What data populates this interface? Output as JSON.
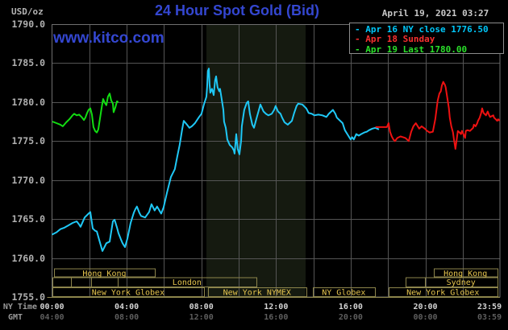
{
  "header": {
    "units_label": "USD/oz",
    "title": "24 Hour Spot Gold (Bid)",
    "datetime": "April 19, 2021 03:27",
    "watermark": "www.kitco.com"
  },
  "legend": {
    "items": [
      {
        "label": "Apr 16 NY close 1776.50",
        "color": "#00c6f8"
      },
      {
        "label": "Apr 18 Sunday",
        "color": "#f83030"
      },
      {
        "label": "Apr 19 Last 1780.00",
        "color": "#2ae02a"
      }
    ]
  },
  "axes": {
    "ny_row_label": "NY Time",
    "gmt_row_label": "GMT",
    "y_tick_labels": [
      "1790.0",
      "1785.0",
      "1780.0",
      "1775.0",
      "1770.0",
      "1765.0",
      "1760.0",
      "1755.0"
    ],
    "x_ticks": [
      {
        "hour": 0,
        "ny": "00:00",
        "gmt": "04:00"
      },
      {
        "hour": 4,
        "ny": "04:00",
        "gmt": "08:00"
      },
      {
        "hour": 8,
        "ny": "08:00",
        "gmt": "12:00"
      },
      {
        "hour": 12,
        "ny": "12:00",
        "gmt": "16:00"
      },
      {
        "hour": 16,
        "ny": "16:00",
        "gmt": "20:00"
      },
      {
        "hour": 20,
        "ny": "20:00",
        "gmt": "00:00"
      },
      {
        "hour": 23.983,
        "ny": "23:59",
        "gmt": "03:59",
        "align": "right"
      }
    ]
  },
  "sessions": {
    "rows": [
      {
        "row": 1,
        "boxes": [
          {
            "label": "Hong Kong",
            "start": 0.11,
            "end": 5.5
          },
          {
            "label": "Hong Kong",
            "start": 20.44,
            "end": 23.85
          }
        ]
      },
      {
        "row": 2,
        "boxes": [
          {
            "label": "",
            "start": 0.0,
            "end": 1.01
          },
          {
            "label": "",
            "start": 1.01,
            "end": 2.09
          },
          {
            "label": "",
            "start": 2.09,
            "end": 3.52
          },
          {
            "label": "London",
            "start": 3.52,
            "end": 10.94
          },
          {
            "label": "",
            "start": 18.93,
            "end": 19.97
          },
          {
            "label": "Sydney",
            "start": 19.97,
            "end": 23.85
          }
        ]
      },
      {
        "row": 3,
        "boxes": [
          {
            "label": "New York Globex",
            "start": 0.02,
            "end": 8.14
          },
          {
            "label": "New York NYMEX",
            "start": 8.35,
            "end": 13.62
          },
          {
            "label": "NY Globex",
            "start": 13.97,
            "end": 17.29
          },
          {
            "label": "New York Globex",
            "start": 18.03,
            "end": 23.85
          }
        ]
      }
    ]
  },
  "colors": {
    "background": "#000000",
    "grid": "#555555",
    "plot_border": "#6f6f6f",
    "session_border": "#8d854c",
    "session_text": "#e5c44e",
    "band_fill": "#151a10",
    "title_blue": "#3447d1"
  },
  "chart_data": {
    "type": "line",
    "title": "24 Hour Spot Gold (Bid)",
    "xlabel": "NY Time (hours 0-24)",
    "ylabel": "USD/oz",
    "ylim": [
      1755,
      1790
    ],
    "y_tick_step": 5,
    "grid": true,
    "legend_position": "top-right",
    "nymex_band": {
      "start_hour": 8.27,
      "end_hour": 13.58
    },
    "series": [
      {
        "name": "Apr 16 NY close 1776.50",
        "color": "#1fc8f6",
        "points": [
          [
            0,
            1763.0
          ],
          [
            0.24,
            1763.3
          ],
          [
            0.45,
            1763.7
          ],
          [
            0.67,
            1763.9
          ],
          [
            0.89,
            1764.2
          ],
          [
            1.1,
            1764.5
          ],
          [
            1.32,
            1764.7
          ],
          [
            1.45,
            1764.3
          ],
          [
            1.53,
            1764.0
          ],
          [
            1.75,
            1765.2
          ],
          [
            1.96,
            1765.7
          ],
          [
            2.05,
            1765.9
          ],
          [
            2.18,
            1763.8
          ],
          [
            2.31,
            1763.5
          ],
          [
            2.4,
            1763.4
          ],
          [
            2.53,
            1762.3
          ],
          [
            2.7,
            1760.9
          ],
          [
            2.83,
            1761.5
          ],
          [
            2.91,
            1761.9
          ],
          [
            3.09,
            1762.1
          ],
          [
            3.26,
            1764.7
          ],
          [
            3.35,
            1764.9
          ],
          [
            3.48,
            1763.9
          ],
          [
            3.56,
            1763.2
          ],
          [
            3.69,
            1762.4
          ],
          [
            3.78,
            1761.9
          ],
          [
            3.91,
            1761.4
          ],
          [
            4.04,
            1762.5
          ],
          [
            4.21,
            1764.5
          ],
          [
            4.38,
            1765.8
          ],
          [
            4.47,
            1766.3
          ],
          [
            4.55,
            1766.6
          ],
          [
            4.68,
            1765.8
          ],
          [
            4.77,
            1765.4
          ],
          [
            4.99,
            1765.2
          ],
          [
            5.2,
            1765.9
          ],
          [
            5.33,
            1766.9
          ],
          [
            5.5,
            1766.1
          ],
          [
            5.63,
            1766.6
          ],
          [
            5.85,
            1765.7
          ],
          [
            5.98,
            1766.5
          ],
          [
            6.15,
            1768.3
          ],
          [
            6.37,
            1770.4
          ],
          [
            6.58,
            1771.4
          ],
          [
            6.71,
            1773.0
          ],
          [
            6.84,
            1774.5
          ],
          [
            6.97,
            1776.5
          ],
          [
            7.06,
            1777.6
          ],
          [
            7.23,
            1777.1
          ],
          [
            7.36,
            1776.7
          ],
          [
            7.49,
            1776.9
          ],
          [
            7.66,
            1777.3
          ],
          [
            7.88,
            1778.1
          ],
          [
            8.01,
            1778.5
          ],
          [
            8.14,
            1779.7
          ],
          [
            8.27,
            1780.7
          ],
          [
            8.31,
            1782.0
          ],
          [
            8.35,
            1784.0
          ],
          [
            8.4,
            1784.3
          ],
          [
            8.44,
            1782.3
          ],
          [
            8.48,
            1781.2
          ],
          [
            8.57,
            1781.7
          ],
          [
            8.66,
            1780.9
          ],
          [
            8.74,
            1782.8
          ],
          [
            8.79,
            1783.3
          ],
          [
            8.87,
            1781.9
          ],
          [
            8.96,
            1781.4
          ],
          [
            9.0,
            1781.7
          ],
          [
            9.09,
            1780.4
          ],
          [
            9.18,
            1779.0
          ],
          [
            9.22,
            1777.5
          ],
          [
            9.31,
            1776.7
          ],
          [
            9.39,
            1775.2
          ],
          [
            9.52,
            1774.5
          ],
          [
            9.65,
            1774.2
          ],
          [
            9.74,
            1773.8
          ],
          [
            9.78,
            1773.4
          ],
          [
            9.87,
            1775.9
          ],
          [
            9.95,
            1774.0
          ],
          [
            10.04,
            1773.3
          ],
          [
            10.13,
            1775.0
          ],
          [
            10.17,
            1776.9
          ],
          [
            10.3,
            1779.0
          ],
          [
            10.43,
            1779.9
          ],
          [
            10.51,
            1780.1
          ],
          [
            10.6,
            1778.5
          ],
          [
            10.73,
            1777.1
          ],
          [
            10.82,
            1776.7
          ],
          [
            10.94,
            1777.8
          ],
          [
            11.12,
            1779.3
          ],
          [
            11.16,
            1779.7
          ],
          [
            11.33,
            1778.8
          ],
          [
            11.46,
            1778.5
          ],
          [
            11.59,
            1778.3
          ],
          [
            11.77,
            1778.5
          ],
          [
            11.9,
            1779.0
          ],
          [
            11.98,
            1779.5
          ],
          [
            12.11,
            1778.8
          ],
          [
            12.24,
            1778.5
          ],
          [
            12.33,
            1778.0
          ],
          [
            12.46,
            1777.4
          ],
          [
            12.63,
            1777.1
          ],
          [
            12.85,
            1777.6
          ],
          [
            12.97,
            1778.6
          ],
          [
            13.1,
            1779.5
          ],
          [
            13.19,
            1779.8
          ],
          [
            13.41,
            1779.7
          ],
          [
            13.49,
            1779.5
          ],
          [
            13.62,
            1779.2
          ],
          [
            13.75,
            1778.6
          ],
          [
            13.92,
            1778.5
          ],
          [
            14.05,
            1778.3
          ],
          [
            14.27,
            1778.4
          ],
          [
            14.49,
            1778.3
          ],
          [
            14.7,
            1778.1
          ],
          [
            14.83,
            1778.5
          ],
          [
            14.96,
            1778.8
          ],
          [
            15.05,
            1779.0
          ],
          [
            15.18,
            1778.5
          ],
          [
            15.26,
            1778.0
          ],
          [
            15.44,
            1777.6
          ],
          [
            15.57,
            1777.3
          ],
          [
            15.69,
            1776.4
          ],
          [
            15.87,
            1775.7
          ],
          [
            16.0,
            1775.2
          ],
          [
            16.08,
            1775.5
          ],
          [
            16.17,
            1775.2
          ],
          [
            16.3,
            1775.9
          ],
          [
            16.43,
            1775.7
          ],
          [
            16.56,
            1775.9
          ],
          [
            16.73,
            1776.1
          ],
          [
            16.86,
            1776.2
          ],
          [
            16.99,
            1776.4
          ],
          [
            17.16,
            1776.6
          ],
          [
            17.33,
            1776.7
          ],
          [
            17.51,
            1776.5
          ]
        ]
      },
      {
        "name": "Apr 18 Sunday",
        "color": "#ee1111",
        "points": [
          [
            17.33,
            1776.8
          ],
          [
            17.94,
            1776.8
          ],
          [
            18.03,
            1777.3
          ],
          [
            18.11,
            1776.2
          ],
          [
            18.2,
            1775.6
          ],
          [
            18.29,
            1775.2
          ],
          [
            18.37,
            1775.0
          ],
          [
            18.5,
            1775.4
          ],
          [
            18.67,
            1775.6
          ],
          [
            18.8,
            1775.5
          ],
          [
            18.93,
            1775.4
          ],
          [
            19.02,
            1775.2
          ],
          [
            19.11,
            1775.0
          ],
          [
            19.24,
            1776.2
          ],
          [
            19.36,
            1776.9
          ],
          [
            19.49,
            1777.3
          ],
          [
            19.67,
            1776.6
          ],
          [
            19.8,
            1776.9
          ],
          [
            19.97,
            1776.6
          ],
          [
            20.1,
            1776.3
          ],
          [
            20.23,
            1776.1
          ],
          [
            20.4,
            1776.2
          ],
          [
            20.53,
            1777.8
          ],
          [
            20.66,
            1780.2
          ],
          [
            20.75,
            1781.1
          ],
          [
            20.83,
            1781.4
          ],
          [
            20.88,
            1782.1
          ],
          [
            20.96,
            1782.6
          ],
          [
            21.05,
            1782.2
          ],
          [
            21.09,
            1781.9
          ],
          [
            21.18,
            1780.5
          ],
          [
            21.26,
            1779.2
          ],
          [
            21.31,
            1778.0
          ],
          [
            21.39,
            1776.9
          ],
          [
            21.48,
            1776.1
          ],
          [
            21.52,
            1775.4
          ],
          [
            21.61,
            1774.0
          ],
          [
            21.7,
            1775.6
          ],
          [
            21.74,
            1776.3
          ],
          [
            21.83,
            1776.1
          ],
          [
            21.91,
            1775.9
          ],
          [
            21.96,
            1776.3
          ],
          [
            22.13,
            1775.4
          ],
          [
            22.17,
            1776.3
          ],
          [
            22.26,
            1776.4
          ],
          [
            22.39,
            1776.3
          ],
          [
            22.56,
            1776.7
          ],
          [
            22.6,
            1777.1
          ],
          [
            22.69,
            1776.9
          ],
          [
            22.78,
            1777.3
          ],
          [
            22.82,
            1777.6
          ],
          [
            22.91,
            1778.0
          ],
          [
            22.99,
            1778.6
          ],
          [
            23.04,
            1779.2
          ],
          [
            23.12,
            1778.6
          ],
          [
            23.25,
            1778.3
          ],
          [
            23.34,
            1778.8
          ],
          [
            23.42,
            1778.3
          ],
          [
            23.47,
            1778.1
          ],
          [
            23.64,
            1778.3
          ],
          [
            23.68,
            1778.0
          ],
          [
            23.77,
            1777.8
          ],
          [
            23.85,
            1777.6
          ],
          [
            23.9,
            1777.8
          ],
          [
            23.98,
            1777.6
          ]
        ]
      },
      {
        "name": "Apr 19 Last 1780.00",
        "color": "#12dd12",
        "points": [
          [
            0.02,
            1777.5
          ],
          [
            0.24,
            1777.3
          ],
          [
            0.45,
            1777.1
          ],
          [
            0.58,
            1776.9
          ],
          [
            0.76,
            1777.4
          ],
          [
            0.93,
            1777.8
          ],
          [
            1.1,
            1778.3
          ],
          [
            1.19,
            1778.5
          ],
          [
            1.32,
            1778.3
          ],
          [
            1.45,
            1778.4
          ],
          [
            1.58,
            1778.1
          ],
          [
            1.71,
            1777.7
          ],
          [
            1.79,
            1778.0
          ],
          [
            1.88,
            1778.6
          ],
          [
            1.96,
            1779.0
          ],
          [
            2.05,
            1779.2
          ],
          [
            2.14,
            1778.4
          ],
          [
            2.22,
            1776.8
          ],
          [
            2.31,
            1776.3
          ],
          [
            2.4,
            1776.1
          ],
          [
            2.48,
            1776.5
          ],
          [
            2.57,
            1777.9
          ],
          [
            2.66,
            1779.3
          ],
          [
            2.74,
            1780.4
          ],
          [
            2.83,
            1779.9
          ],
          [
            2.91,
            1779.6
          ],
          [
            3.0,
            1780.7
          ],
          [
            3.09,
            1781.1
          ],
          [
            3.17,
            1780.2
          ],
          [
            3.26,
            1779.8
          ],
          [
            3.3,
            1778.7
          ],
          [
            3.39,
            1779.3
          ],
          [
            3.48,
            1780.1
          ],
          [
            3.55,
            1780.0
          ]
        ]
      }
    ]
  }
}
